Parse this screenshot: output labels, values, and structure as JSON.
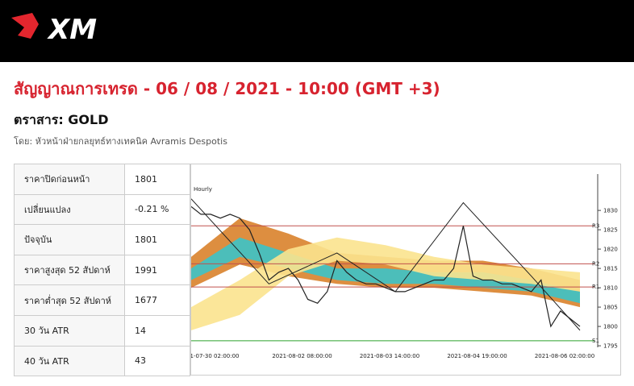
{
  "header": {
    "logo": "XM"
  },
  "title": "สัญญาณการเทรด - 06 / 08 / 2021 - 10:00 (GMT +3)",
  "instrument": "ตราสาร: GOLD",
  "byline": "โดย: หัวหน้าฝ่ายกลยุทธ์ทางเทคนิค Avramis Despotis",
  "table": {
    "rows": [
      [
        "ราคาปิดก่อนหน้า",
        "1801"
      ],
      [
        "เปลี่ยนแปลง",
        "-0.21 %"
      ],
      [
        "ปัจจุบัน",
        "1801"
      ],
      [
        "ราคาสูงสุด 52 สัปดาห์",
        "1991"
      ],
      [
        "ราคาต่ำสุด 52 สัปดาห์",
        "1677"
      ],
      [
        "30 วัน ATR",
        "14"
      ],
      [
        "40 วัน ATR",
        "43"
      ]
    ]
  },
  "chart": {
    "type": "line",
    "label": "Hourly",
    "ylim": [
      1794.6,
      1839.4
    ],
    "yticks": [
      1795,
      1800,
      1805,
      1810,
      1815,
      1820,
      1825,
      1830
    ],
    "xlabels": [
      "1-07-30 02:00:00",
      "2021-08-02 08:00:00",
      "2021-08-03 14:00:00",
      "2021-08-04 19:00:00",
      "2021-08-06 02:00:00"
    ],
    "xlim": [
      0,
      40
    ],
    "price": [
      1831,
      1829,
      1829,
      1828,
      1829,
      1828,
      1825,
      1819,
      1812,
      1814,
      1815,
      1812,
      1807,
      1806,
      1809,
      1817,
      1814,
      1812,
      1811,
      1811,
      1810,
      1809,
      1809,
      1810,
      1811,
      1812,
      1812,
      1815,
      1826,
      1813,
      1812,
      1812,
      1811,
      1811,
      1810,
      1809,
      1812,
      1800,
      1804,
      1802,
      1800
    ],
    "zigzag": {
      "x": [
        0,
        8,
        15,
        21,
        28,
        35,
        40
      ],
      "values": [
        1833,
        1811,
        1819,
        1809,
        1832,
        1813,
        1799
      ]
    },
    "bands": [
      {
        "color": "#d9822b",
        "x": [
          0,
          5,
          10,
          15,
          20,
          25,
          30,
          35,
          40
        ],
        "upper": [
          1818,
          1828,
          1824,
          1819,
          1818,
          1817,
          1817,
          1815,
          1812
        ],
        "lower": [
          1810,
          1816,
          1813,
          1811,
          1810,
          1810,
          1809,
          1808,
          1805
        ]
      },
      {
        "color": "#3cc3c8",
        "x": [
          0,
          5,
          10,
          15,
          20,
          25,
          30,
          35,
          40
        ],
        "upper": [
          1815,
          1823,
          1819,
          1815,
          1815,
          1814,
          1814,
          1812,
          1809
        ],
        "lower": [
          1812,
          1818,
          1815,
          1812,
          1811,
          1811,
          1810,
          1809,
          1806
        ]
      },
      {
        "color": "#fbe38e",
        "x": [
          0,
          5,
          10,
          15,
          20,
          25,
          30,
          35,
          40
        ],
        "upper": [
          1805,
          1812,
          1820,
          1823,
          1821,
          1818,
          1816,
          1815,
          1814
        ],
        "lower": [
          1799,
          1803,
          1813,
          1817,
          1816,
          1813,
          1812,
          1811,
          1809
        ]
      }
    ],
    "levels": [
      {
        "name": "R3",
        "value": 1826,
        "color": "#c0504d"
      },
      {
        "name": "R2",
        "value": 1816.2,
        "color": "#c0504d"
      },
      {
        "name": "R1",
        "value": 1810.2,
        "color": "#c0504d"
      },
      {
        "name": "S1",
        "value": 1796.3,
        "color": "#2ca02c"
      }
    ]
  }
}
